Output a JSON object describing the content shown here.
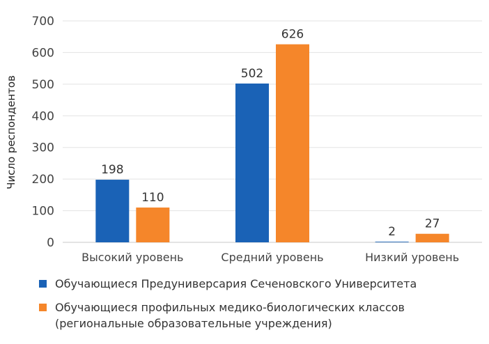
{
  "chart_data": {
    "type": "bar",
    "title": "",
    "xlabel": "",
    "ylabel": "Число респондентов",
    "ylim": [
      0,
      700
    ],
    "yticks": [
      0,
      100,
      200,
      300,
      400,
      500,
      600,
      700
    ],
    "grid": true,
    "legend_position": "bottom",
    "categories": [
      "Высокий уровень",
      "Средний уровень",
      "Низкий уровень"
    ],
    "series": [
      {
        "name": "Обучающиеся Предуниверсария Сеченовского Университета",
        "color": "#1a62b6",
        "values": [
          198,
          502,
          2
        ]
      },
      {
        "name": "Обучающиеся профильных медико-биологических классов\n(региональные образовательные учреждения)",
        "color": "#f5862a",
        "values": [
          110,
          626,
          27
        ]
      }
    ]
  }
}
